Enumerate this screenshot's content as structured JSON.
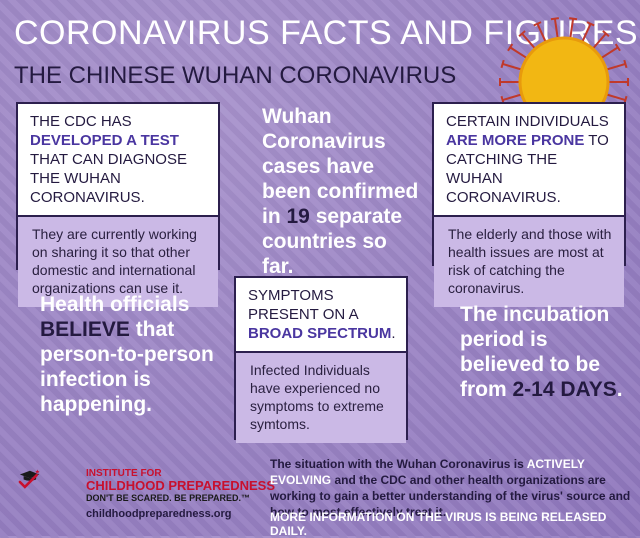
{
  "header": {
    "title": "CORONAVIRUS FACTS AND FIGURES",
    "subtitle": "THE CHINESE WUHAN CORONAVIRUS"
  },
  "card_test": {
    "head_pre": "THE CDC HAS ",
    "head_hl": "DEVELOPED A TEST",
    "head_post": " THAT CAN DIAGNOSE THE WUHAN CORONAVIRUS.",
    "body": "They are currently working on sharing it so that other domestic and international organizations can use it."
  },
  "stat_countries": {
    "pre": "Wuhan Coronavirus cases have been confirmed in ",
    "num": "19",
    "post": " separate countries so far."
  },
  "card_prone": {
    "head_pre": "CERTAIN INDIVIDUALS ",
    "head_hl": "ARE MORE PRONE",
    "head_post": " TO CATCHING THE WUHAN CORONAVIRUS.",
    "body": "The elderly and those with health issues are most at risk of catching the coronavirus."
  },
  "stat_officials": {
    "pre": "Health officials ",
    "em": "BELIEVE",
    "post": " that person-to-person infection is happening."
  },
  "card_symptoms": {
    "head_pre": "SYMPTOMS PRESENT ON A ",
    "head_hl": "BROAD SPECTRUM",
    "head_post": ".",
    "body": "Infected Individuals have experienced no symptoms to extreme symtoms."
  },
  "stat_incubation": {
    "pre": "The incubation period is believed to be from ",
    "em": "2-14 DAYS",
    "post": "."
  },
  "logo": {
    "line1": "INSTITUTE FOR",
    "line2": "CHILDHOOD PREPAREDNESS",
    "line3": "DON'T BE SCARED. BE PREPARED.™",
    "url": "childhoodpreparedness.org"
  },
  "footer": {
    "pre": "The situation with the Wuhan Coronavirus is ",
    "hl": "ACTIVELY EVOLVING",
    "post": " and the CDC and other health organizations are working to gain a better understanding of the virus' source and how to most effectively treat it.",
    "line2": "MORE INFORMATION ON THE VIRUS IS BEING RELEASED DAILY."
  },
  "colors": {
    "background": "#9b86c4",
    "dark_purple": "#241a40",
    "accent_purple": "#4a36a0",
    "card_body": "#cbb9e6",
    "sun": "#f2b713",
    "logo_red": "#c8102e"
  }
}
